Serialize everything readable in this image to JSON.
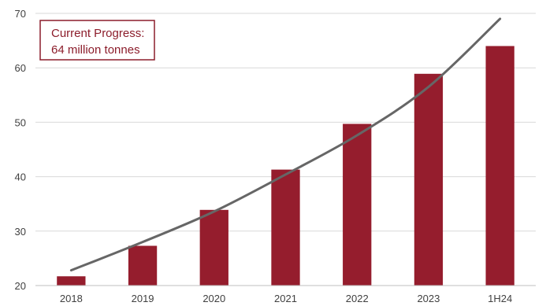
{
  "chart_data": {
    "type": "bar",
    "categories": [
      "2018",
      "2019",
      "2020",
      "2021",
      "2022",
      "2023",
      "1H24"
    ],
    "values": [
      21.7,
      27.3,
      33.9,
      41.3,
      49.7,
      58.9,
      64.0
    ],
    "trend": {
      "x": [
        0,
        1,
        2,
        3,
        4,
        5,
        6
      ],
      "y": [
        22.8,
        28.0,
        33.6,
        40.4,
        47.6,
        56.5,
        69.0
      ]
    },
    "ylim": [
      20,
      70
    ],
    "yticks": [
      20,
      30,
      40,
      50,
      60,
      70
    ],
    "title": "",
    "xlabel": "",
    "ylabel": "",
    "grid": true,
    "colors": {
      "bar": "#951d2d",
      "trend": "#666666",
      "accent": "#8c1d2b",
      "grid": "#d9d9d9"
    }
  },
  "callout": {
    "line1": "Current Progress:",
    "line2": "64 million tonnes"
  }
}
